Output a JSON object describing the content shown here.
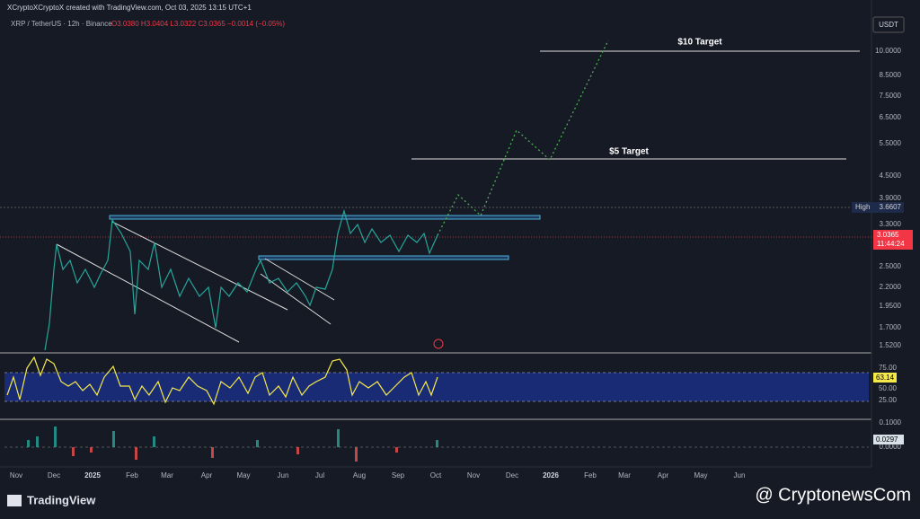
{
  "header": {
    "author_line": "XCryptoXCryptoX created with TradingView.com, Oct 03, 2025 13:15 UTC+1",
    "symbol": "XRP / TetherUS · 12h · Binance",
    "ohlc": "O3.0380 H3.0404 L3.0322 C3.0365 −0.0014 (−0.05%)"
  },
  "currency": "USDT",
  "price_axis": [
    "10.0000",
    "8.5000",
    "7.5000",
    "6.5000",
    "5.5000",
    "4.5000",
    "3.9000",
    "3.3000",
    "2.5000",
    "2.2000",
    "1.9500",
    "1.7000",
    "1.5200"
  ],
  "high_label": {
    "label": "High",
    "value": "3.6607"
  },
  "last_price": {
    "price": "3.0365",
    "countdown": "11:44:24"
  },
  "rsi_axis": [
    "75.00",
    "50.00",
    "25.00"
  ],
  "rsi_value": "63.14",
  "macd_axis": [
    "0.1000",
    "0.0000"
  ],
  "macd_value": "0.0297",
  "time_axis": [
    "Nov",
    "Dec",
    "2025",
    "Feb",
    "Mar",
    "Apr",
    "May",
    "Jun",
    "Jul",
    "Aug",
    "Sep",
    "Oct",
    "Nov",
    "Dec",
    "2026",
    "Feb",
    "Mar",
    "Apr",
    "May",
    "Jun"
  ],
  "annotations": [
    "$10 Target",
    "$5 Target"
  ],
  "footer": {
    "brand": "TradingView",
    "watermark": "@ CryptonewsCom"
  }
}
